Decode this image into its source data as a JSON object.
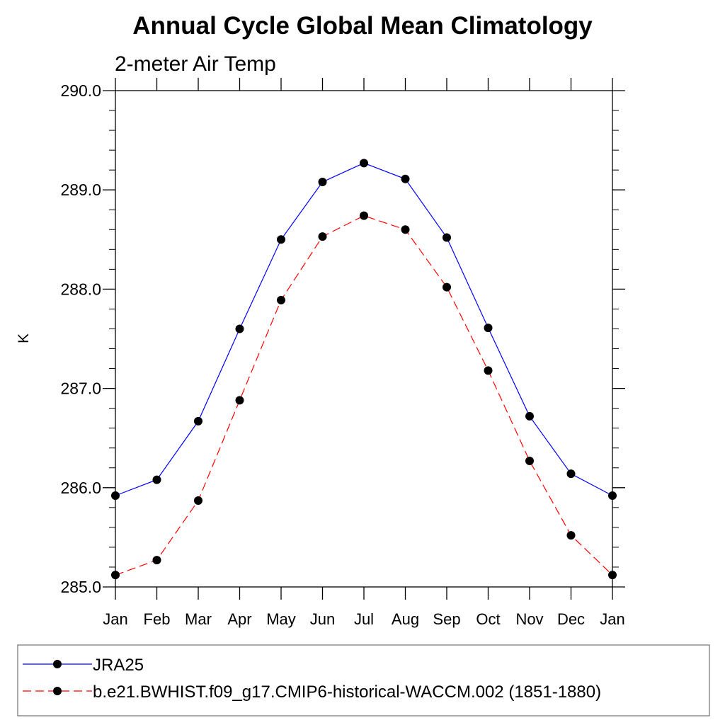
{
  "chart_data": {
    "type": "line",
    "title": "Annual Cycle Global Mean Climatology",
    "subtitle": "2-meter Air Temp",
    "xlabel": "",
    "ylabel": "K",
    "categories": [
      "Jan",
      "Feb",
      "Mar",
      "Apr",
      "May",
      "Jun",
      "Jul",
      "Aug",
      "Sep",
      "Oct",
      "Nov",
      "Dec",
      "Jan"
    ],
    "ylim": [
      285.0,
      290.0
    ],
    "yticks": [
      "285.0",
      "286.0",
      "287.0",
      "288.0",
      "289.0",
      "290.0"
    ],
    "grid": false,
    "legend_position": "bottom",
    "series": [
      {
        "name": "JRA25",
        "color": "#0000ff",
        "line_style": "solid",
        "marker": "filled-circle",
        "values": [
          285.92,
          286.08,
          286.67,
          287.6,
          288.5,
          289.08,
          289.27,
          289.11,
          288.52,
          287.61,
          286.72,
          286.14,
          285.92
        ]
      },
      {
        "name": "b.e21.BWHIST.f09_g17.CMIP6-historical-WACCM.002 (1851-1880)",
        "color": "#ff0000",
        "line_style": "dashed",
        "marker": "filled-circle",
        "values": [
          285.12,
          285.27,
          285.87,
          286.88,
          287.89,
          288.53,
          288.74,
          288.6,
          288.02,
          287.18,
          286.27,
          285.52,
          285.12
        ]
      }
    ]
  }
}
